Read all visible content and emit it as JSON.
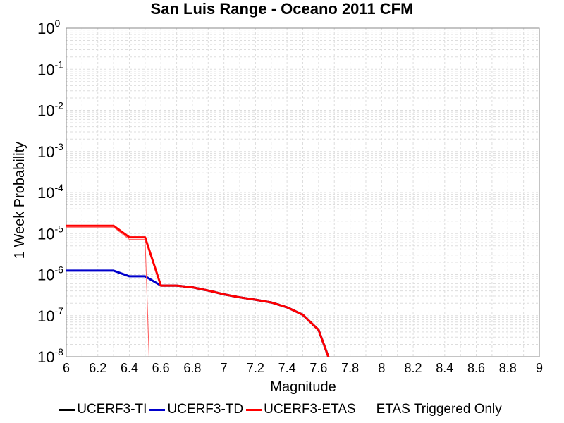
{
  "chart_data": {
    "type": "line",
    "title": "San Luis Range - Oceano 2011 CFM",
    "xlabel": "Magnitude",
    "ylabel": "1 Week Probability",
    "xlim": [
      6,
      9
    ],
    "ylim": [
      1e-08,
      1
    ],
    "yscale": "log",
    "grid": true,
    "legend_position": "bottom",
    "x_ticks": [
      {
        "value": 6,
        "label": "6"
      },
      {
        "value": 6.2,
        "label": "6.2"
      },
      {
        "value": 6.4,
        "label": "6.4"
      },
      {
        "value": 6.6,
        "label": "6.6"
      },
      {
        "value": 6.8,
        "label": "6.8"
      },
      {
        "value": 7,
        "label": "7"
      },
      {
        "value": 7.2,
        "label": "7.2"
      },
      {
        "value": 7.4,
        "label": "7.4"
      },
      {
        "value": 7.6,
        "label": "7.6"
      },
      {
        "value": 7.8,
        "label": "7.8"
      },
      {
        "value": 8,
        "label": "8"
      },
      {
        "value": 8.2,
        "label": "8.2"
      },
      {
        "value": 8.4,
        "label": "8.4"
      },
      {
        "value": 8.6,
        "label": "8.6"
      },
      {
        "value": 8.8,
        "label": "8.8"
      },
      {
        "value": 9,
        "label": "9"
      }
    ],
    "y_ticks": [
      {
        "value": 1,
        "base": "10",
        "exp": "0"
      },
      {
        "value": 0.1,
        "base": "10",
        "exp": "-1"
      },
      {
        "value": 0.01,
        "base": "10",
        "exp": "-2"
      },
      {
        "value": 0.001,
        "base": "10",
        "exp": "-3"
      },
      {
        "value": 0.0001,
        "base": "10",
        "exp": "-4"
      },
      {
        "value": 1e-05,
        "base": "10",
        "exp": "-5"
      },
      {
        "value": 1e-06,
        "base": "10",
        "exp": "-6"
      },
      {
        "value": 1e-07,
        "base": "10",
        "exp": "-7"
      },
      {
        "value": 1e-08,
        "base": "10",
        "exp": "-8"
      }
    ],
    "series": [
      {
        "name": "UCERF3-TI",
        "color": "#000000",
        "width": 3,
        "x": [
          6.6,
          6.7,
          6.8,
          6.9,
          7.0,
          7.1,
          7.2,
          7.3,
          7.4,
          7.5,
          7.6,
          7.7
        ],
        "y": [
          5.4e-07,
          5.4e-07,
          4.9e-07,
          4.1e-07,
          3.3e-07,
          2.8e-07,
          2.45e-07,
          2.1e-07,
          1.6e-07,
          1.05e-07,
          4.5e-08,
          4e-09
        ]
      },
      {
        "name": "UCERF3-TD",
        "color": "#0000cc",
        "width": 3,
        "x": [
          6.0,
          6.1,
          6.2,
          6.3,
          6.4,
          6.5,
          6.6,
          6.7,
          6.8,
          6.9,
          7.0,
          7.1,
          7.2,
          7.3,
          7.4,
          7.5,
          7.6,
          7.7
        ],
        "y": [
          1.25e-06,
          1.25e-06,
          1.25e-06,
          1.25e-06,
          9.1e-07,
          9.1e-07,
          5.4e-07,
          5.4e-07,
          4.9e-07,
          4.1e-07,
          3.3e-07,
          2.8e-07,
          2.45e-07,
          2.1e-07,
          1.6e-07,
          1.05e-07,
          4.5e-08,
          4e-09
        ]
      },
      {
        "name": "UCERF3-ETAS",
        "color": "#ff0000",
        "width": 3,
        "x": [
          6.0,
          6.1,
          6.2,
          6.3,
          6.4,
          6.5,
          6.6,
          6.7,
          6.8,
          6.9,
          7.0,
          7.1,
          7.2,
          7.3,
          7.4,
          7.5,
          7.6,
          7.7
        ],
        "y": [
          1.55e-05,
          1.55e-05,
          1.55e-05,
          1.55e-05,
          8.1e-06,
          8.1e-06,
          5.4e-07,
          5.4e-07,
          4.9e-07,
          4.1e-07,
          3.3e-07,
          2.8e-07,
          2.45e-07,
          2.1e-07,
          1.6e-07,
          1.05e-07,
          4.5e-08,
          4e-09
        ]
      },
      {
        "name": "ETAS Triggered Only",
        "color": "#ff5a5a",
        "width": 1,
        "x": [
          6.0,
          6.1,
          6.2,
          6.3,
          6.4,
          6.5,
          6.53
        ],
        "y": [
          1.43e-05,
          1.43e-05,
          1.43e-05,
          1.43e-05,
          7.2e-06,
          7.2e-06,
          3e-09
        ]
      }
    ]
  }
}
